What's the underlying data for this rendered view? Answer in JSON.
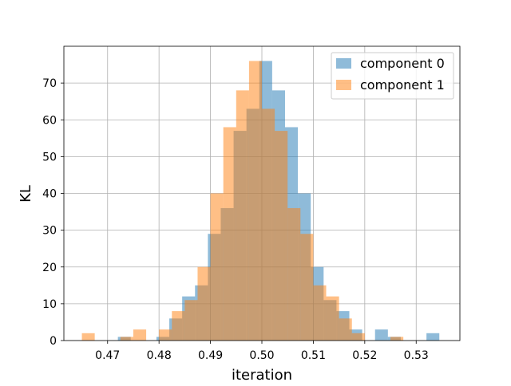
{
  "chart_data": {
    "type": "bar",
    "subtype": "overlaid-histogram",
    "xlabel": "iteration",
    "ylabel": "KL",
    "xlim": [
      0.4615,
      0.5385
    ],
    "ylim": [
      0,
      80
    ],
    "x_ticks": [
      0.47,
      0.48,
      0.49,
      0.5,
      0.51,
      0.52,
      0.53
    ],
    "x_tick_labels": [
      "0.47",
      "0.48",
      "0.49",
      "0.50",
      "0.51",
      "0.52",
      "0.53"
    ],
    "y_ticks": [
      0,
      10,
      20,
      30,
      40,
      50,
      60,
      70
    ],
    "y_tick_labels": [
      "0",
      "10",
      "20",
      "30",
      "40",
      "50",
      "60",
      "70"
    ],
    "grid": true,
    "legend_position": "top-right",
    "series": [
      {
        "name": "component 0",
        "color": "#1f77b4",
        "opacity": 0.5,
        "bins": [
          {
            "x0": 0.472,
            "x1": 0.4745,
            "count": 1
          },
          {
            "x0": 0.4745,
            "x1": 0.4795,
            "count": 0
          },
          {
            "x0": 0.4795,
            "x1": 0.482,
            "count": 1
          },
          {
            "x0": 0.482,
            "x1": 0.4845,
            "count": 6
          },
          {
            "x0": 0.4845,
            "x1": 0.487,
            "count": 12
          },
          {
            "x0": 0.487,
            "x1": 0.4895,
            "count": 15
          },
          {
            "x0": 0.4895,
            "x1": 0.492,
            "count": 29
          },
          {
            "x0": 0.492,
            "x1": 0.4945,
            "count": 36
          },
          {
            "x0": 0.4945,
            "x1": 0.497,
            "count": 57
          },
          {
            "x0": 0.497,
            "x1": 0.4995,
            "count": 63
          },
          {
            "x0": 0.4995,
            "x1": 0.502,
            "count": 76
          },
          {
            "x0": 0.502,
            "x1": 0.5045,
            "count": 68
          },
          {
            "x0": 0.5045,
            "x1": 0.507,
            "count": 58
          },
          {
            "x0": 0.507,
            "x1": 0.5095,
            "count": 40
          },
          {
            "x0": 0.5095,
            "x1": 0.512,
            "count": 20
          },
          {
            "x0": 0.512,
            "x1": 0.5145,
            "count": 11
          },
          {
            "x0": 0.5145,
            "x1": 0.517,
            "count": 8
          },
          {
            "x0": 0.517,
            "x1": 0.5195,
            "count": 3
          },
          {
            "x0": 0.5195,
            "x1": 0.522,
            "count": 0
          },
          {
            "x0": 0.522,
            "x1": 0.5245,
            "count": 3
          },
          {
            "x0": 0.5245,
            "x1": 0.527,
            "count": 1
          },
          {
            "x0": 0.527,
            "x1": 0.532,
            "count": 0
          },
          {
            "x0": 0.532,
            "x1": 0.5345,
            "count": 2
          }
        ]
      },
      {
        "name": "component 1",
        "color": "#ff7f0e",
        "opacity": 0.5,
        "bins": [
          {
            "x0": 0.465,
            "x1": 0.4675,
            "count": 2
          },
          {
            "x0": 0.4675,
            "x1": 0.4725,
            "count": 0
          },
          {
            "x0": 0.4725,
            "x1": 0.475,
            "count": 1
          },
          {
            "x0": 0.475,
            "x1": 0.4775,
            "count": 3
          },
          {
            "x0": 0.4775,
            "x1": 0.48,
            "count": 0
          },
          {
            "x0": 0.48,
            "x1": 0.4825,
            "count": 3
          },
          {
            "x0": 0.4825,
            "x1": 0.485,
            "count": 8
          },
          {
            "x0": 0.485,
            "x1": 0.4875,
            "count": 11
          },
          {
            "x0": 0.4875,
            "x1": 0.49,
            "count": 20
          },
          {
            "x0": 0.49,
            "x1": 0.4925,
            "count": 40
          },
          {
            "x0": 0.4925,
            "x1": 0.495,
            "count": 58
          },
          {
            "x0": 0.495,
            "x1": 0.4975,
            "count": 68
          },
          {
            "x0": 0.4975,
            "x1": 0.5,
            "count": 76
          },
          {
            "x0": 0.5,
            "x1": 0.5025,
            "count": 63
          },
          {
            "x0": 0.5025,
            "x1": 0.505,
            "count": 57
          },
          {
            "x0": 0.505,
            "x1": 0.5075,
            "count": 36
          },
          {
            "x0": 0.5075,
            "x1": 0.51,
            "count": 29
          },
          {
            "x0": 0.51,
            "x1": 0.5125,
            "count": 15
          },
          {
            "x0": 0.5125,
            "x1": 0.515,
            "count": 12
          },
          {
            "x0": 0.515,
            "x1": 0.5175,
            "count": 6
          },
          {
            "x0": 0.5175,
            "x1": 0.52,
            "count": 2
          },
          {
            "x0": 0.52,
            "x1": 0.525,
            "count": 0
          },
          {
            "x0": 0.525,
            "x1": 0.5275,
            "count": 1
          }
        ]
      }
    ]
  }
}
